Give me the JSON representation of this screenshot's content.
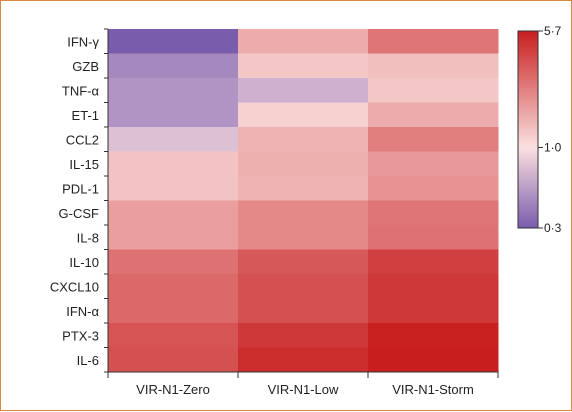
{
  "chart_data": {
    "type": "heatmap",
    "title": "",
    "xlabel": "",
    "ylabel": "",
    "columns": [
      "VIR-N1-Zero",
      "VIR-N1-Low",
      "VIR-N1-Storm"
    ],
    "rows": [
      "IFN-γ",
      "GZB",
      "TNF-α",
      "ET-1",
      "CCL2",
      "IL-15",
      "PDL-1",
      "G-CSF",
      "IL-8",
      "IL-10",
      "CXCL10",
      "IFN-α",
      "PTX-3",
      "IL-6"
    ],
    "values": [
      [
        0.3,
        1.6,
        2.6
      ],
      [
        0.45,
        1.25,
        1.35
      ],
      [
        0.5,
        0.65,
        1.25
      ],
      [
        0.5,
        1.15,
        1.6
      ],
      [
        0.75,
        1.5,
        2.4
      ],
      [
        1.3,
        1.55,
        1.9
      ],
      [
        1.3,
        1.5,
        2.0
      ],
      [
        1.8,
        2.2,
        2.6
      ],
      [
        1.8,
        2.2,
        2.7
      ],
      [
        2.7,
        3.4,
        4.2
      ],
      [
        2.9,
        3.6,
        4.5
      ],
      [
        2.9,
        3.6,
        4.5
      ],
      [
        3.5,
        4.5,
        5.6
      ],
      [
        3.6,
        5.0,
        5.7
      ]
    ],
    "colorbar": {
      "scale": "log",
      "min": 0.3,
      "max": 5.7,
      "ticks": [
        {
          "value": 5.7,
          "label": "5·7"
        },
        {
          "value": 1.0,
          "label": "1·0"
        },
        {
          "value": 0.3,
          "label": "0·3"
        }
      ],
      "color_low": "#7a5cad",
      "color_mid": "#fbe0e0",
      "color_high": "#c81e1e"
    }
  }
}
